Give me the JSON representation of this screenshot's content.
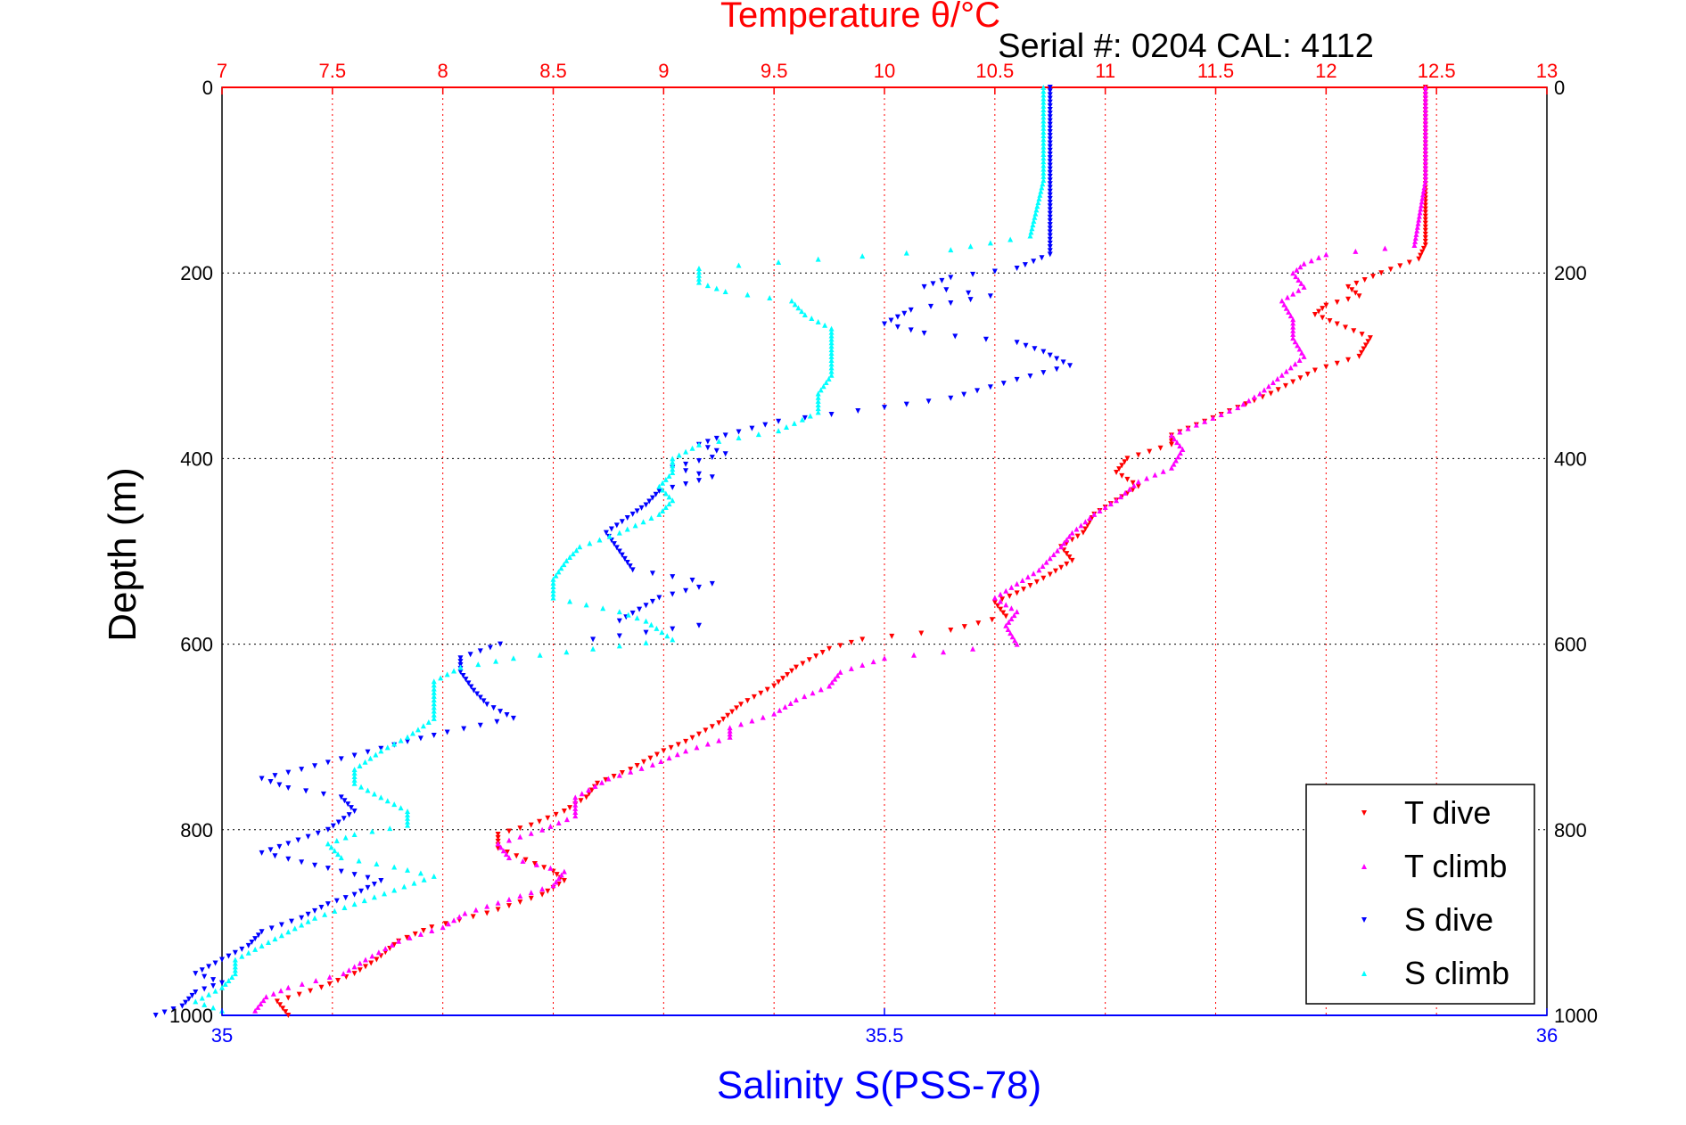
{
  "chart_data": {
    "type": "scatter",
    "title": "Temperature θ/°C",
    "subtitle": "Serial #: 0204  CAL: 4112",
    "xlabel": "Salinity S(PSS-78)",
    "ylabel": "Depth (m)",
    "temperature_axis": {
      "range": [
        7,
        13
      ],
      "ticks": [
        "7",
        "7.5",
        "8",
        "8.5",
        "9",
        "9.5",
        "10",
        "10.5",
        "11",
        "11.5",
        "12",
        "12.5",
        "13"
      ],
      "color": "#ff0000"
    },
    "salinity_axis": {
      "range": [
        35,
        36
      ],
      "ticks": [
        "35",
        "35.5",
        "36"
      ],
      "color": "#0000ff"
    },
    "depth_axis": {
      "range": [
        0,
        1000
      ],
      "reversed": true,
      "ticks": [
        "0",
        "200",
        "400",
        "600",
        "800",
        "1000"
      ]
    },
    "grid": true,
    "legend_position": "bottom-right",
    "series": [
      {
        "name": "T dive",
        "color": "#ff0000",
        "marker": "triangle-down",
        "axis": "temperature",
        "points": [
          [
            12.45,
            0
          ],
          [
            12.45,
            100
          ],
          [
            12.45,
            170
          ],
          [
            12.42,
            185
          ],
          [
            12.25,
            200
          ],
          [
            12.1,
            215
          ],
          [
            12.15,
            225
          ],
          [
            12.0,
            235
          ],
          [
            11.95,
            245
          ],
          [
            12.05,
            255
          ],
          [
            12.2,
            270
          ],
          [
            12.15,
            290
          ],
          [
            11.95,
            305
          ],
          [
            11.75,
            330
          ],
          [
            11.45,
            360
          ],
          [
            11.3,
            375
          ],
          [
            11.3,
            385
          ],
          [
            11.1,
            400
          ],
          [
            11.05,
            415
          ],
          [
            11.15,
            430
          ],
          [
            11.05,
            445
          ],
          [
            10.95,
            460
          ],
          [
            10.9,
            480
          ],
          [
            10.8,
            495
          ],
          [
            10.85,
            510
          ],
          [
            10.75,
            525
          ],
          [
            10.6,
            545
          ],
          [
            10.5,
            555
          ],
          [
            10.55,
            570
          ],
          [
            10.3,
            585
          ],
          [
            9.9,
            595
          ],
          [
            9.75,
            605
          ],
          [
            9.6,
            625
          ],
          [
            9.5,
            645
          ],
          [
            9.35,
            665
          ],
          [
            9.25,
            685
          ],
          [
            9.1,
            705
          ],
          [
            9.0,
            715
          ],
          [
            8.85,
            735
          ],
          [
            8.7,
            750
          ],
          [
            8.65,
            765
          ],
          [
            8.55,
            780
          ],
          [
            8.4,
            795
          ],
          [
            8.25,
            805
          ],
          [
            8.25,
            820
          ],
          [
            8.5,
            845
          ],
          [
            8.55,
            855
          ],
          [
            8.45,
            870
          ],
          [
            8.2,
            890
          ],
          [
            7.95,
            905
          ],
          [
            7.8,
            920
          ],
          [
            7.7,
            940
          ],
          [
            7.6,
            955
          ],
          [
            7.45,
            970
          ],
          [
            7.25,
            985
          ],
          [
            7.3,
            1000
          ]
        ]
      },
      {
        "name": "T climb",
        "color": "#ff00ff",
        "marker": "triangle-up",
        "axis": "temperature",
        "points": [
          [
            12.45,
            0
          ],
          [
            12.45,
            100
          ],
          [
            12.4,
            170
          ],
          [
            12.0,
            180
          ],
          [
            11.9,
            190
          ],
          [
            11.85,
            200
          ],
          [
            11.9,
            215
          ],
          [
            11.8,
            230
          ],
          [
            11.85,
            250
          ],
          [
            11.85,
            270
          ],
          [
            11.9,
            290
          ],
          [
            11.8,
            310
          ],
          [
            11.7,
            330
          ],
          [
            11.6,
            345
          ],
          [
            11.45,
            360
          ],
          [
            11.3,
            375
          ],
          [
            11.35,
            390
          ],
          [
            11.3,
            410
          ],
          [
            11.15,
            425
          ],
          [
            11.05,
            445
          ],
          [
            10.95,
            460
          ],
          [
            10.85,
            480
          ],
          [
            10.8,
            495
          ],
          [
            10.7,
            520
          ],
          [
            10.6,
            535
          ],
          [
            10.5,
            550
          ],
          [
            10.6,
            565
          ],
          [
            10.55,
            580
          ],
          [
            10.6,
            600
          ],
          [
            10.4,
            605
          ],
          [
            10.0,
            615
          ],
          [
            9.8,
            630
          ],
          [
            9.75,
            645
          ],
          [
            9.6,
            660
          ],
          [
            9.5,
            675
          ],
          [
            9.3,
            690
          ],
          [
            9.3,
            700
          ],
          [
            9.1,
            715
          ],
          [
            8.95,
            730
          ],
          [
            8.75,
            745
          ],
          [
            8.6,
            765
          ],
          [
            8.6,
            785
          ],
          [
            8.45,
            800
          ],
          [
            8.25,
            815
          ],
          [
            8.3,
            830
          ],
          [
            8.55,
            845
          ],
          [
            8.5,
            860
          ],
          [
            8.3,
            875
          ],
          [
            8.1,
            890
          ],
          [
            8.0,
            905
          ],
          [
            7.8,
            920
          ],
          [
            7.65,
            940
          ],
          [
            7.55,
            955
          ],
          [
            7.3,
            970
          ],
          [
            7.2,
            980
          ],
          [
            7.15,
            995
          ]
        ]
      },
      {
        "name": "S dive",
        "color": "#0000ff",
        "marker": "triangle-down",
        "axis": "salinity",
        "points": [
          [
            35.625,
            0
          ],
          [
            35.625,
            100
          ],
          [
            35.625,
            180
          ],
          [
            35.6,
            195
          ],
          [
            35.55,
            205
          ],
          [
            35.53,
            215
          ],
          [
            35.58,
            225
          ],
          [
            35.52,
            240
          ],
          [
            35.5,
            255
          ],
          [
            35.53,
            265
          ],
          [
            35.6,
            275
          ],
          [
            35.62,
            285
          ],
          [
            35.64,
            300
          ],
          [
            35.6,
            315
          ],
          [
            35.55,
            335
          ],
          [
            35.5,
            345
          ],
          [
            35.42,
            360
          ],
          [
            35.38,
            375
          ],
          [
            35.36,
            385
          ],
          [
            35.38,
            395
          ],
          [
            35.34,
            410
          ],
          [
            35.37,
            420
          ],
          [
            35.33,
            435
          ],
          [
            35.32,
            450
          ],
          [
            35.31,
            460
          ],
          [
            35.29,
            480
          ],
          [
            35.3,
            500
          ],
          [
            35.31,
            520
          ],
          [
            35.37,
            535
          ],
          [
            35.33,
            550
          ],
          [
            35.3,
            575
          ],
          [
            35.36,
            580
          ],
          [
            35.28,
            595
          ],
          [
            35.21,
            600
          ],
          [
            35.18,
            615
          ],
          [
            35.18,
            630
          ],
          [
            35.19,
            650
          ],
          [
            35.2,
            665
          ],
          [
            35.22,
            680
          ],
          [
            35.17,
            695
          ],
          [
            35.14,
            705
          ],
          [
            35.1,
            720
          ],
          [
            35.06,
            735
          ],
          [
            35.03,
            745
          ],
          [
            35.05,
            755
          ],
          [
            35.09,
            765
          ],
          [
            35.1,
            780
          ],
          [
            35.08,
            800
          ],
          [
            35.05,
            815
          ],
          [
            35.03,
            825
          ],
          [
            35.06,
            835
          ],
          [
            35.09,
            845
          ],
          [
            35.12,
            855
          ],
          [
            35.1,
            870
          ],
          [
            35.08,
            880
          ],
          [
            35.06,
            895
          ],
          [
            35.03,
            910
          ],
          [
            35.02,
            925
          ],
          [
            35.0,
            940
          ],
          [
            34.98,
            955
          ],
          [
            35.0,
            965
          ],
          [
            34.98,
            975
          ],
          [
            34.97,
            990
          ],
          [
            34.95,
            1000
          ]
        ]
      },
      {
        "name": "S climb",
        "color": "#00ffff",
        "marker": "triangle-up",
        "axis": "salinity",
        "points": [
          [
            35.62,
            0
          ],
          [
            35.62,
            100
          ],
          [
            35.61,
            160
          ],
          [
            35.55,
            175
          ],
          [
            35.45,
            185
          ],
          [
            35.36,
            195
          ],
          [
            35.36,
            210
          ],
          [
            35.38,
            220
          ],
          [
            35.43,
            230
          ],
          [
            35.44,
            245
          ],
          [
            35.46,
            260
          ],
          [
            35.46,
            275
          ],
          [
            35.46,
            290
          ],
          [
            35.46,
            310
          ],
          [
            35.45,
            330
          ],
          [
            35.45,
            350
          ],
          [
            35.42,
            370
          ],
          [
            35.36,
            385
          ],
          [
            35.34,
            400
          ],
          [
            35.34,
            415
          ],
          [
            35.33,
            430
          ],
          [
            35.34,
            445
          ],
          [
            35.33,
            460
          ],
          [
            35.3,
            480
          ],
          [
            35.27,
            495
          ],
          [
            35.26,
            510
          ],
          [
            35.25,
            530
          ],
          [
            35.25,
            550
          ],
          [
            35.3,
            565
          ],
          [
            35.32,
            575
          ],
          [
            35.34,
            595
          ],
          [
            35.28,
            605
          ],
          [
            35.22,
            615
          ],
          [
            35.18,
            625
          ],
          [
            35.16,
            640
          ],
          [
            35.16,
            660
          ],
          [
            35.16,
            680
          ],
          [
            35.14,
            700
          ],
          [
            35.12,
            715
          ],
          [
            35.1,
            735
          ],
          [
            35.1,
            750
          ],
          [
            35.12,
            765
          ],
          [
            35.14,
            780
          ],
          [
            35.14,
            795
          ],
          [
            35.1,
            805
          ],
          [
            35.08,
            815
          ],
          [
            35.09,
            830
          ],
          [
            35.13,
            840
          ],
          [
            35.16,
            850
          ],
          [
            35.13,
            865
          ],
          [
            35.1,
            880
          ],
          [
            35.07,
            895
          ],
          [
            35.05,
            910
          ],
          [
            35.03,
            925
          ],
          [
            35.01,
            940
          ],
          [
            35.01,
            955
          ],
          [
            35.0,
            970
          ],
          [
            34.98,
            985
          ],
          [
            35.0,
            995
          ]
        ]
      }
    ]
  }
}
